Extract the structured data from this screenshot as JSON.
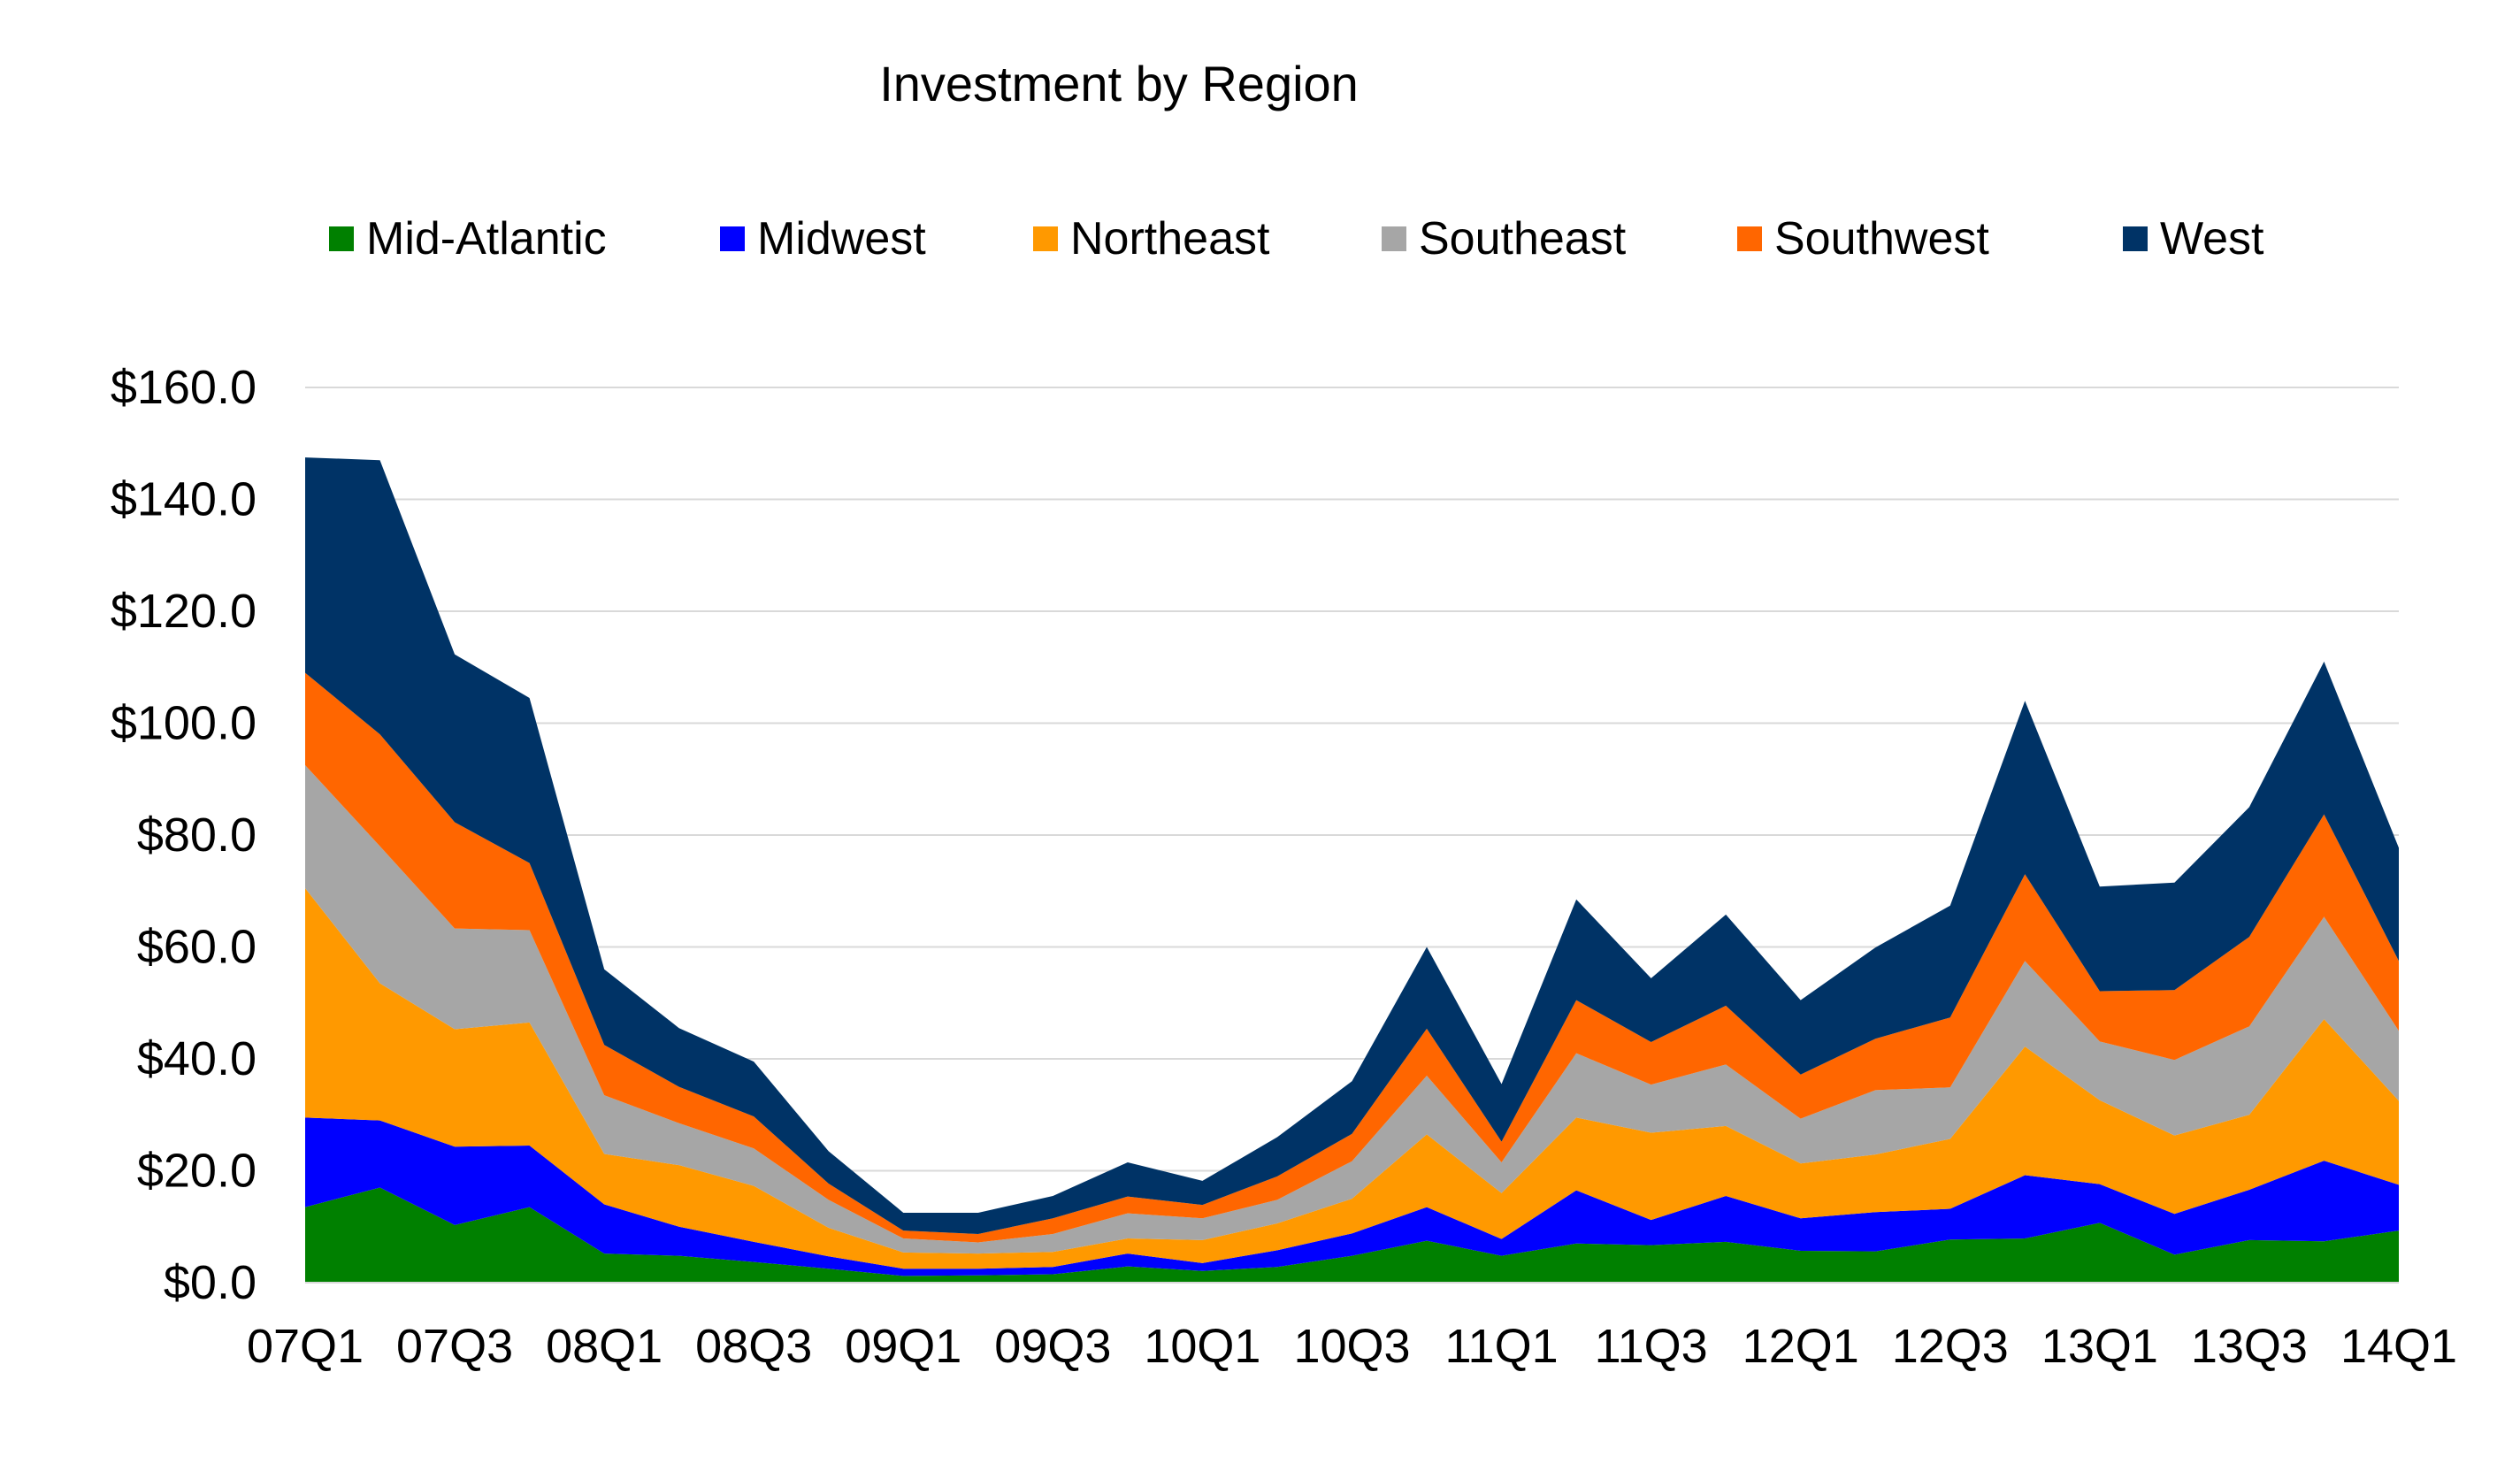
{
  "chart_data": {
    "type": "area",
    "stacked": true,
    "title": "Investment by Region",
    "xlabel": "",
    "ylabel": "",
    "ylim": [
      0,
      160
    ],
    "y_tick_step": 20,
    "y_tick_labels": [
      "$0.0",
      "$20.0",
      "$40.0",
      "$60.0",
      "$80.0",
      "$100.0",
      "$120.0",
      "$140.0",
      "$160.0"
    ],
    "grid": true,
    "legend_position": "top",
    "x": [
      "07Q1",
      "07Q2",
      "07Q3",
      "07Q4",
      "08Q1",
      "08Q2",
      "08Q3",
      "08Q4",
      "09Q1",
      "09Q2",
      "09Q3",
      "09Q4",
      "10Q1",
      "10Q2",
      "10Q3",
      "10Q4",
      "11Q1",
      "11Q2",
      "11Q3",
      "11Q4",
      "12Q1",
      "12Q2",
      "12Q3",
      "12Q4",
      "13Q1",
      "13Q2",
      "13Q3",
      "13Q4",
      "14Q1"
    ],
    "x_tick_labels": [
      "07Q1",
      "07Q3",
      "08Q1",
      "08Q3",
      "09Q1",
      "09Q3",
      "10Q1",
      "10Q3",
      "11Q1",
      "11Q3",
      "12Q1",
      "12Q3",
      "13Q1",
      "13Q3",
      "14Q1"
    ],
    "series": [
      {
        "name": "Mid-Atlantic",
        "color": "#008000",
        "values": [
          13.5,
          17,
          10.3,
          13.5,
          5.2,
          4.8,
          3.7,
          2.5,
          1.2,
          1.3,
          1.5,
          2.9,
          2.1,
          2.8,
          4.8,
          7.5,
          4.8,
          7,
          6.7,
          7.3,
          5.7,
          5.6,
          7.7,
          7.9,
          10.7,
          5,
          7.6,
          7.4,
          9.3
        ]
      },
      {
        "name": "Midwest",
        "color": "#0000FF",
        "values": [
          16,
          12,
          14,
          11,
          8.8,
          5.2,
          3.6,
          2.2,
          1.3,
          1.2,
          1.3,
          2.3,
          1.4,
          3,
          4,
          6,
          3,
          9.5,
          4.5,
          8.2,
          5.8,
          7,
          5.5,
          11.3,
          6.9,
          7.3,
          9,
          14.4,
          8.2
        ]
      },
      {
        "name": "Northeast",
        "color": "#FF9900",
        "values": [
          41,
          24.5,
          21,
          22,
          9,
          11,
          10,
          5.1,
          2.9,
          2.7,
          2.7,
          2.7,
          4.1,
          4.8,
          6.2,
          13,
          8.2,
          13,
          15.6,
          12.5,
          9.8,
          10.3,
          12.5,
          23,
          15,
          14,
          13.4,
          25.3,
          15
        ]
      },
      {
        "name": "Southeast",
        "color": "#A6A6A6",
        "values": [
          22,
          24.5,
          18,
          16.5,
          10.5,
          7.5,
          6.7,
          5,
          2.5,
          2,
          3.2,
          4.5,
          3.9,
          4.2,
          6.7,
          10.5,
          5.5,
          11.5,
          8.6,
          11,
          8,
          11.5,
          9.2,
          15.3,
          10.5,
          13.5,
          15.8,
          18.3,
          12.5
        ]
      },
      {
        "name": "Southwest",
        "color": "#FF6600",
        "values": [
          16.5,
          20,
          19,
          12,
          9,
          6.5,
          5.7,
          2.9,
          1.4,
          1.5,
          2.8,
          3,
          2.4,
          4.2,
          4.9,
          8.4,
          3.7,
          9.5,
          7.6,
          10.5,
          7.9,
          9.2,
          12.5,
          15.5,
          9,
          12.5,
          16,
          18.3,
          12.5
        ]
      },
      {
        "name": "West",
        "color": "#003366",
        "values": [
          38.5,
          49,
          30,
          29.5,
          13.5,
          10.5,
          9.8,
          5.8,
          3.2,
          3.8,
          4,
          6.1,
          4.3,
          7,
          9.4,
          14.6,
          10.3,
          18,
          11.4,
          16.3,
          13.3,
          16.3,
          20,
          31,
          18.7,
          19.2,
          23.2,
          27.3,
          20.2
        ]
      }
    ]
  }
}
